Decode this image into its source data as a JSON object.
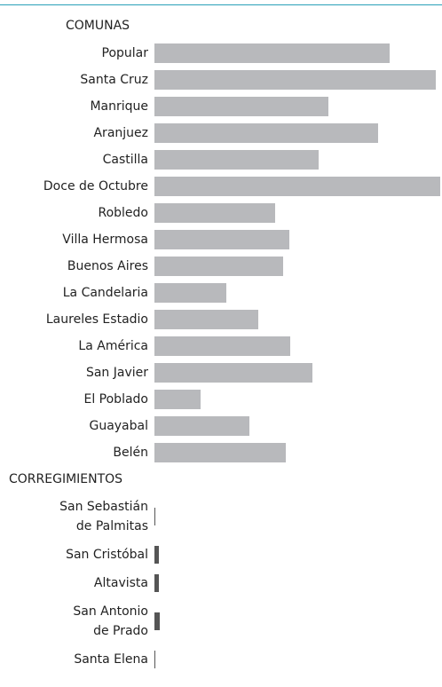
{
  "chart_data": {
    "type": "bar",
    "orientation": "horizontal",
    "xlim": [
      0,
      324
    ],
    "groups": [
      {
        "name": "COMUNAS",
        "color": "#b8b9bc",
        "categories": [
          "Popular",
          "Santa Cruz",
          "Manrique",
          "Aranjuez",
          "Castilla",
          "Doce de Octubre",
          "Robledo",
          "Villa Hermosa",
          "Buenos Aires",
          "La Candelaria",
          "Laureles Estadio",
          "La América",
          "San Javier",
          "El Poblado",
          "Guayabal",
          "Belén"
        ],
        "values": [
          265,
          317,
          196,
          252,
          185,
          322,
          136,
          152,
          145,
          81,
          117,
          153,
          178,
          52,
          107,
          148
        ]
      },
      {
        "name": "CORREGIMIENTOS",
        "color": "#555555",
        "categories": [
          "San Sebastián\nde Palmitas",
          "San Cristóbal",
          "Altavista",
          "San Antonio\nde Prado",
          "Santa Elena"
        ],
        "values": [
          1,
          5,
          5,
          6,
          1
        ]
      }
    ]
  }
}
